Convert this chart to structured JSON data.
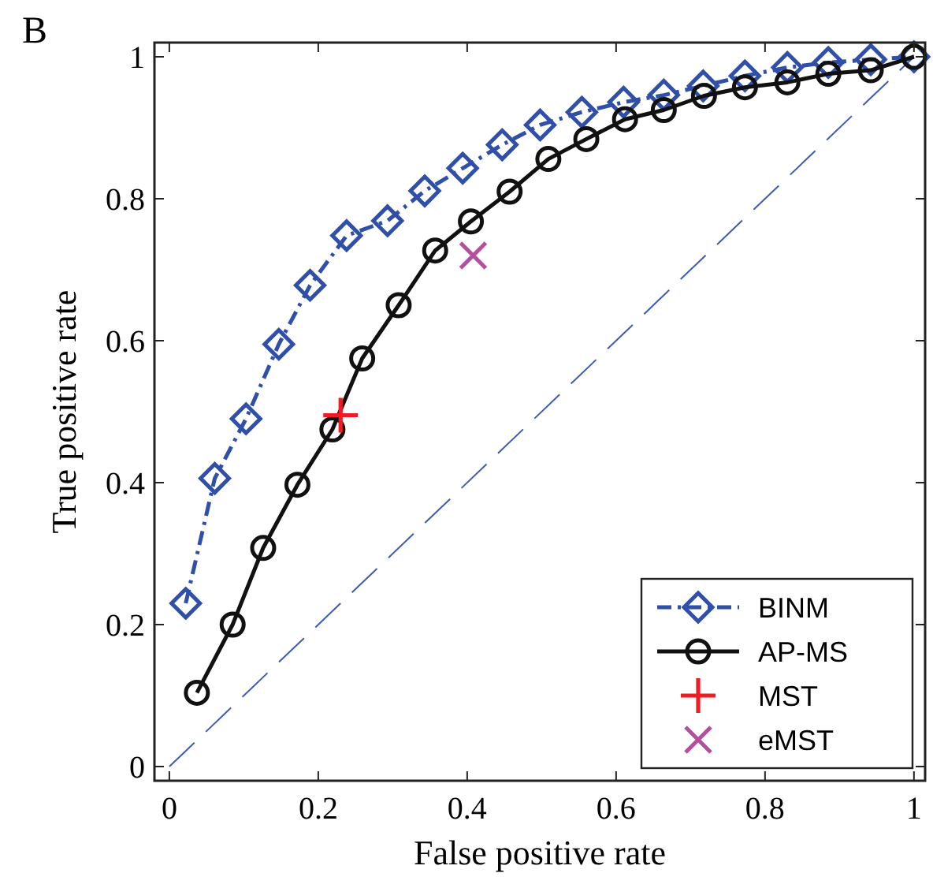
{
  "chart_data": {
    "type": "line",
    "xlabel": "False positive rate",
    "ylabel": "True positive rate",
    "annotations": [
      "B"
    ],
    "xlim": [
      -0.02,
      1.015
    ],
    "ylim": [
      -0.02,
      1.02
    ],
    "xticks": [
      0,
      0.2,
      0.4,
      0.6,
      0.8,
      1
    ],
    "yticks": [
      0,
      0.2,
      0.4,
      0.6,
      0.8,
      1
    ],
    "grid": false,
    "legend": "bottom right",
    "series": [
      {
        "name": "BINM",
        "color": "#2f4fa8",
        "marker": "diamond",
        "line_style": "dashed",
        "x": [
          0.022,
          0.061,
          0.103,
          0.147,
          0.189,
          0.238,
          0.293,
          0.343,
          0.394,
          0.447,
          0.498,
          0.554,
          0.61,
          0.664,
          0.717,
          0.773,
          0.83,
          0.885,
          0.942,
          1
        ],
        "values": [
          0.23,
          0.406,
          0.49,
          0.595,
          0.678,
          0.748,
          0.769,
          0.811,
          0.843,
          0.876,
          0.904,
          0.922,
          0.936,
          0.946,
          0.959,
          0.973,
          0.985,
          0.992,
          0.996,
          1
        ]
      },
      {
        "name": "AP-MS",
        "color": "#111111",
        "marker": "circle",
        "line_style": "solid",
        "x": [
          0.037,
          0.085,
          0.126,
          0.172,
          0.219,
          0.259,
          0.308,
          0.357,
          0.405,
          0.457,
          0.509,
          0.56,
          0.612,
          0.664,
          0.718,
          0.773,
          0.83,
          0.885,
          0.942,
          1
        ],
        "values": [
          0.104,
          0.2,
          0.308,
          0.397,
          0.475,
          0.575,
          0.65,
          0.727,
          0.768,
          0.81,
          0.856,
          0.884,
          0.912,
          0.925,
          0.945,
          0.957,
          0.964,
          0.976,
          0.981,
          1
        ]
      },
      {
        "name": "MST",
        "type": "scatter",
        "color": "#ee1c25",
        "marker": "cross",
        "x": [
          0.23
        ],
        "values": [
          0.495
        ]
      },
      {
        "name": "eMST",
        "type": "scatter",
        "color": "#b44fa0",
        "marker": "x",
        "x": [
          0.408
        ],
        "values": [
          0.72
        ]
      },
      {
        "type": "line",
        "color": "#3d5bb5",
        "marker": "none",
        "line_style": "dashed",
        "x": [
          0,
          1
        ],
        "values": [
          0,
          1
        ]
      }
    ]
  }
}
